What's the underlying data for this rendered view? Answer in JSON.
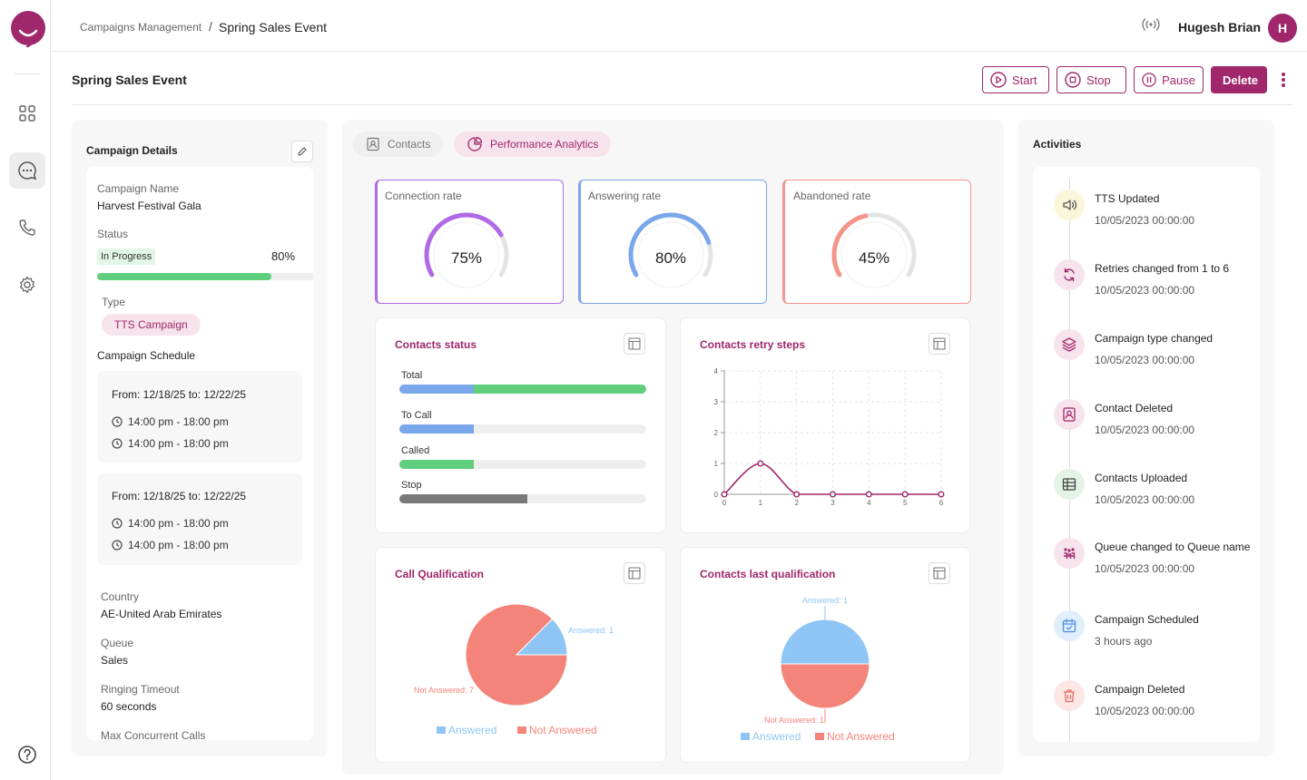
{
  "breadcrumb": {
    "parent": "Campaigns Management",
    "separator": "/",
    "current": "Spring Sales Event"
  },
  "user": {
    "name": "Hugesh Brian",
    "initial": "H"
  },
  "page": {
    "title": "Spring Sales Event"
  },
  "actions": {
    "start": "Start",
    "stop": "Stop",
    "pause": "Pause",
    "delete": "Delete"
  },
  "colors": {
    "brand": "#a0276b",
    "green": "#5fce7d",
    "blue": "#79a7ea",
    "purple": "#b169e6",
    "red": "#f4948b"
  },
  "details": {
    "title": "Campaign Details",
    "name_label": "Campaign Name",
    "name_value": "Harvest Festival Gala",
    "status_label": "Status",
    "status_value": "In Progress",
    "progress_text": "80%",
    "progress": 0.8,
    "type_label": "Type",
    "type_value": "TTS Campaign",
    "schedule_label": "Campaign Schedule",
    "schedules": [
      {
        "range": "From:  12/18/25  to: 12/22/25",
        "times": [
          "14:00 pm - 18:00 pm",
          "14:00 pm - 18:00 pm"
        ]
      },
      {
        "range": "From:  12/18/25  to: 12/22/25",
        "times": [
          "14:00 pm - 18:00 pm",
          "14:00 pm - 18:00 pm"
        ]
      }
    ],
    "country_label": "Country",
    "country_value": "AE-United Arab Emirates",
    "queue_label": "Queue",
    "queue_value": "Sales",
    "ringing_label": "Ringing Timeout",
    "ringing_value": "60 seconds",
    "max_label": "Max Concurrent Calls"
  },
  "tabs": {
    "contacts": "Contacts",
    "analytics": "Performance Analytics"
  },
  "gauges": [
    {
      "label": "Connection rate",
      "value_text": "75%",
      "value": 0.75,
      "color": "#b169e6"
    },
    {
      "label": "Answering rate",
      "value_text": "80%",
      "value": 0.8,
      "color": "#79a7ea"
    },
    {
      "label": "Abandoned rate",
      "value_text": "45%",
      "value": 0.45,
      "color": "#f4948b"
    }
  ],
  "contacts_status": {
    "title": "Contacts status",
    "bars": [
      {
        "label": "Total",
        "segments": [
          {
            "frac": 0.3,
            "color": "#79a7ea"
          },
          {
            "frac": 0.7,
            "color": "#5fce7d"
          }
        ]
      },
      {
        "label": "To Call",
        "segments": [
          {
            "frac": 0.3,
            "color": "#79a7ea"
          }
        ]
      },
      {
        "label": "Called",
        "segments": [
          {
            "frac": 0.3,
            "color": "#5fce7d"
          }
        ]
      },
      {
        "label": "Stop",
        "segments": [
          {
            "frac": 0.52,
            "color": "#7a7a7a"
          }
        ]
      }
    ]
  },
  "retry_steps": {
    "title": "Contacts retry steps",
    "chart_data": {
      "type": "line",
      "x": [
        0,
        1,
        2,
        3,
        4,
        5,
        6
      ],
      "y": [
        0,
        1,
        0,
        0,
        0,
        0,
        0
      ],
      "ylim": [
        0,
        4
      ],
      "yticks": [
        0,
        1,
        2,
        3,
        4
      ],
      "xlabel": "",
      "ylabel": "",
      "grid": true
    }
  },
  "call_qualification": {
    "title": "Call Qualification",
    "chart_data": {
      "type": "pie",
      "labels": [
        "Answered",
        "Not Answered"
      ],
      "values": [
        1,
        7
      ],
      "data_labels": [
        "Answered: 1",
        "Not Answered: 7"
      ],
      "colors": [
        "#8ec5f4",
        "#f4847a"
      ],
      "legend": "bottom"
    }
  },
  "last_qualification": {
    "title": "Contacts last qualification",
    "chart_data": {
      "type": "pie",
      "labels": [
        "Answered",
        "Not Answered"
      ],
      "values": [
        1,
        1
      ],
      "data_labels": [
        "Answered: 1",
        "Not Answered: 1"
      ],
      "colors": [
        "#8ec5f4",
        "#f4847a"
      ],
      "legend": "bottom"
    }
  },
  "activities": {
    "title": "Activities",
    "items": [
      {
        "title": "TTS Updated",
        "time": "10/05/2023  00:00:00",
        "icon": "speaker-icon",
        "bg": "#fbf6d9",
        "fg": "#555"
      },
      {
        "title": "Retries changed from 1 to 6",
        "time": "10/05/2023  00:00:00",
        "icon": "refresh-icon",
        "bg": "#f7e3ec",
        "fg": "#a0276b"
      },
      {
        "title": "Campaign type changed",
        "time": "10/05/2023  00:00:00",
        "icon": "layers-icon",
        "bg": "#f7e3ec",
        "fg": "#a0276b"
      },
      {
        "title": "Contact Deleted",
        "time": "10/05/2023  00:00:00",
        "icon": "contact-card-icon",
        "bg": "#f7e3ec",
        "fg": "#a0276b"
      },
      {
        "title": "Contacts Uploaded",
        "time": "10/05/2023  00:00:00",
        "icon": "table-icon",
        "bg": "#e3f3e6",
        "fg": "#444"
      },
      {
        "title": "Queue changed to Queue name",
        "time": "10/05/2023  00:00:00",
        "icon": "queue-icon",
        "bg": "#f7e3ec",
        "fg": "#a0276b"
      },
      {
        "title": "Campaign Scheduled",
        "time": "3 hours ago",
        "icon": "calendar-icon",
        "bg": "#e1eefb",
        "fg": "#4a8fe0"
      },
      {
        "title": "Campaign Deleted",
        "time": "10/05/2023  00:00:00",
        "icon": "trash-icon",
        "bg": "#fce7e5",
        "fg": "#e36b5e"
      }
    ]
  }
}
